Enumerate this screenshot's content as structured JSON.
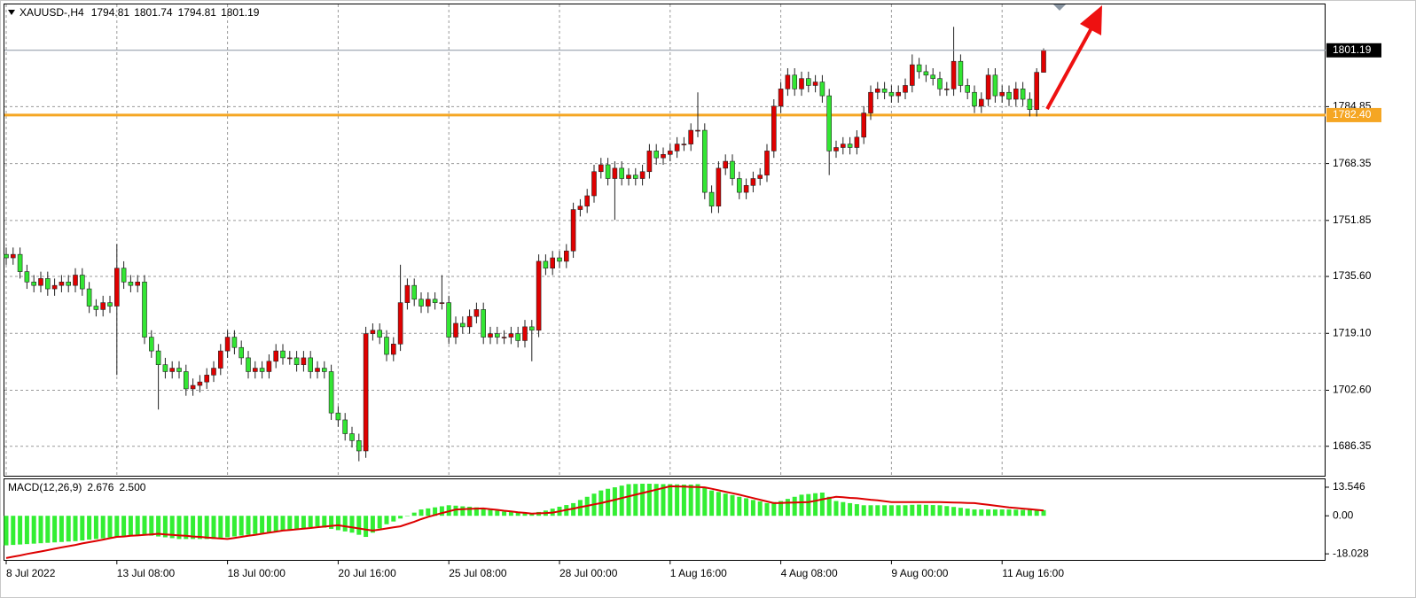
{
  "chart_data": [
    {
      "type": "candlestick",
      "title": "XAUUSD-,H4",
      "categories": [
        "8 Jul 2022",
        null,
        null,
        null,
        null,
        null,
        null,
        null,
        null,
        null,
        null,
        null,
        null,
        null,
        null,
        null,
        "13 Jul 08:00",
        null,
        null,
        null,
        null,
        null,
        null,
        null,
        null,
        null,
        null,
        null,
        null,
        null,
        null,
        null,
        "18 Jul 00:00",
        null,
        null,
        null,
        null,
        null,
        null,
        null,
        null,
        null,
        null,
        null,
        null,
        null,
        null,
        null,
        "20 Jul 16:00",
        null,
        null,
        null,
        null,
        null,
        null,
        null,
        null,
        null,
        null,
        null,
        null,
        null,
        null,
        null,
        "25 Jul 08:00",
        null,
        null,
        null,
        null,
        null,
        null,
        null,
        null,
        null,
        null,
        null,
        null,
        null,
        null,
        null,
        "28 Jul 00:00",
        null,
        null,
        null,
        null,
        null,
        null,
        null,
        null,
        null,
        null,
        null,
        null,
        null,
        null,
        null,
        "1 Aug 16:00",
        null,
        null,
        null,
        null,
        null,
        null,
        null,
        null,
        null,
        null,
        null,
        null,
        null,
        null,
        null,
        "4 Aug 08:00",
        null,
        null,
        null,
        null,
        null,
        null,
        null,
        null,
        null,
        null,
        null,
        null,
        null,
        null,
        null,
        "9 Aug 00:00",
        null,
        null,
        null,
        null,
        null,
        null,
        null,
        null,
        null,
        null,
        null,
        null,
        null,
        null,
        null,
        "11 Aug 16:00",
        null,
        null,
        null,
        null,
        null,
        null
      ],
      "open": [
        1742,
        1741,
        1742,
        1737,
        1734,
        1733,
        1735,
        1732,
        1733,
        1734,
        1733,
        1736,
        1732,
        1727,
        1726,
        1728,
        1727,
        1738,
        1734,
        1733,
        1734,
        1718,
        1714,
        1710,
        1708,
        1709,
        1708,
        1703,
        1704,
        1705,
        1707,
        1709,
        1714,
        1718,
        1715,
        1712,
        1708,
        1709,
        1708,
        1711,
        1714,
        1712,
        1712,
        1710,
        1712,
        1708,
        1709,
        1708,
        1696,
        1694,
        1690,
        1688,
        1685,
        1719,
        1720,
        1718,
        1713,
        1716,
        1728,
        1733,
        1729,
        1727,
        1729,
        1728,
        1728,
        1718,
        1722,
        1721,
        1724,
        1726,
        1718,
        1719,
        1718,
        1718,
        1719,
        1717,
        1721,
        1720,
        1740,
        1738,
        1741,
        1740,
        1743,
        1755,
        1756,
        1759,
        1766,
        1768,
        1764,
        1767,
        1764,
        1765,
        1764,
        1766,
        1772,
        1770,
        1771,
        1772,
        1774,
        1774,
        1778,
        1778,
        1760,
        1756,
        1767,
        1769,
        1764,
        1760,
        1762,
        1764,
        1765,
        1772,
        1785,
        1790,
        1794,
        1790,
        1793,
        1791,
        1792,
        1788,
        1772,
        1773,
        1774,
        1773,
        1776,
        1783,
        1789,
        1790,
        1789,
        1788,
        1789,
        1791,
        1797,
        1795,
        1794,
        1793,
        1790,
        1790,
        1798,
        1791,
        1789,
        1785,
        1787,
        1794,
        1788,
        1789,
        1787,
        1790,
        1787,
        1784,
        1794.81
      ],
      "high": [
        1744,
        1744,
        1744,
        1739,
        1736,
        1737,
        1737,
        1735,
        1736,
        1736,
        1738,
        1738,
        1734,
        1729,
        1730,
        1730,
        1745,
        1740,
        1736,
        1736,
        1736,
        1720,
        1716,
        1712,
        1711,
        1711,
        1710,
        1706,
        1707,
        1709,
        1711,
        1716,
        1720,
        1720,
        1717,
        1714,
        1711,
        1711,
        1713,
        1716,
        1716,
        1714,
        1714,
        1714,
        1714,
        1711,
        1711,
        1710,
        1698,
        1696,
        1692,
        1690,
        1721,
        1722,
        1722,
        1720,
        1718,
        1739,
        1735,
        1735,
        1731,
        1731,
        1731,
        1736,
        1730,
        1724,
        1724,
        1726,
        1728,
        1728,
        1721,
        1721,
        1720,
        1721,
        1721,
        1723,
        1723,
        1742,
        1742,
        1743,
        1743,
        1745,
        1757,
        1758,
        1761,
        1768,
        1770,
        1770,
        1769,
        1769,
        1767,
        1767,
        1768,
        1774,
        1774,
        1773,
        1774,
        1776,
        1776,
        1780,
        1789,
        1780,
        1762,
        1769,
        1771,
        1771,
        1766,
        1764,
        1766,
        1767,
        1774,
        1787,
        1792,
        1796,
        1796,
        1795,
        1795,
        1794,
        1794,
        1790,
        1775,
        1776,
        1776,
        1778,
        1785,
        1791,
        1792,
        1792,
        1791,
        1791,
        1793,
        1800,
        1799,
        1797,
        1796,
        1795,
        1792,
        1808,
        1800,
        1793,
        1791,
        1789,
        1796,
        1796,
        1791,
        1791,
        1792,
        1792,
        1789,
        1796,
        1801.74
      ],
      "low": [
        1739,
        1739,
        1735,
        1732,
        1731,
        1731,
        1730,
        1730,
        1731,
        1731,
        1731,
        1730,
        1725,
        1724,
        1724,
        1725,
        1707,
        1732,
        1731,
        1731,
        1716,
        1712,
        1697,
        1706,
        1706,
        1706,
        1701,
        1701,
        1702,
        1703,
        1705,
        1707,
        1712,
        1713,
        1710,
        1706,
        1706,
        1706,
        1706,
        1709,
        1710,
        1710,
        1708,
        1708,
        1706,
        1706,
        1706,
        1694,
        1692,
        1688,
        1686,
        1682,
        1683,
        1717,
        1716,
        1711,
        1711,
        1714,
        1726,
        1727,
        1725,
        1725,
        1726,
        1726,
        1716,
        1716,
        1719,
        1719,
        1722,
        1716,
        1716,
        1716,
        1716,
        1716,
        1715,
        1715,
        1711,
        1718,
        1736,
        1736,
        1738,
        1738,
        1741,
        1753,
        1754,
        1757,
        1764,
        1762,
        1752,
        1762,
        1762,
        1762,
        1762,
        1764,
        1768,
        1768,
        1769,
        1770,
        1772,
        1772,
        1776,
        1758,
        1754,
        1754,
        1765,
        1762,
        1758,
        1758,
        1760,
        1762,
        1763,
        1770,
        1783,
        1788,
        1788,
        1788,
        1789,
        1789,
        1786,
        1765,
        1770,
        1771,
        1771,
        1771,
        1774,
        1781,
        1787,
        1787,
        1786,
        1786,
        1787,
        1789,
        1793,
        1792,
        1791,
        1788,
        1788,
        1788,
        1789,
        1787,
        1783,
        1783,
        1785,
        1786,
        1786,
        1785,
        1785,
        1785,
        1782,
        1782,
        1794.81
      ],
      "close": [
        1741,
        1742,
        1737,
        1734,
        1733,
        1735,
        1732,
        1733,
        1734,
        1733,
        1736,
        1732,
        1727,
        1726,
        1728,
        1727,
        1738,
        1734,
        1733,
        1734,
        1718,
        1714,
        1710,
        1708,
        1709,
        1708,
        1703,
        1704,
        1705,
        1707,
        1709,
        1714,
        1718,
        1715,
        1712,
        1708,
        1709,
        1708,
        1711,
        1714,
        1712,
        1712,
        1710,
        1712,
        1708,
        1709,
        1708,
        1696,
        1694,
        1690,
        1688,
        1685,
        1719,
        1720,
        1718,
        1713,
        1716,
        1728,
        1733,
        1729,
        1727,
        1729,
        1728,
        1728,
        1718,
        1722,
        1721,
        1724,
        1726,
        1718,
        1719,
        1718,
        1718,
        1719,
        1717,
        1721,
        1720,
        1740,
        1738,
        1741,
        1740,
        1743,
        1755,
        1756,
        1759,
        1766,
        1768,
        1764,
        1767,
        1764,
        1765,
        1764,
        1766,
        1772,
        1770,
        1771,
        1772,
        1774,
        1774,
        1778,
        1778,
        1760,
        1756,
        1767,
        1769,
        1764,
        1760,
        1762,
        1764,
        1765,
        1772,
        1785,
        1790,
        1794,
        1790,
        1793,
        1791,
        1792,
        1788,
        1772,
        1773,
        1774,
        1773,
        1776,
        1783,
        1789,
        1790,
        1789,
        1788,
        1789,
        1791,
        1797,
        1795,
        1794,
        1793,
        1790,
        1790,
        1798,
        1791,
        1789,
        1785,
        1787,
        1794,
        1788,
        1789,
        1787,
        1790,
        1787,
        1784,
        1794.81,
        1801.19
      ],
      "up_color": "#e00000",
      "down_color": "#33e633",
      "ylim": [
        1677.8,
        1814.5
      ],
      "yticks": [
        1784.85,
        1768.35,
        1751.85,
        {
          "value": 1735.6,
          "label": "1735.60"
        },
        {
          "value": 1719.1,
          "label": "1719.10"
        },
        {
          "value": 1702.6,
          "label": "1702.60"
        },
        1686.35
      ],
      "grid": true,
      "hline": {
        "value": 1782.4,
        "label": "1782.40",
        "color": "#f5a623"
      }
    },
    {
      "type": "macd",
      "title": "MACD(12,26,9)",
      "histogram": {
        "color": "#33ee33",
        "values": [
          -14,
          -13.8,
          -13.6,
          -13.4,
          -13.2,
          -13,
          -12.8,
          -12.6,
          -12.4,
          -12.2,
          -12,
          -11.7,
          -11.3,
          -11,
          -10.7,
          -10.3,
          -10,
          -9.8,
          -9.5,
          -9.3,
          -9,
          -9.4,
          -9.8,
          -10.2,
          -10.6,
          -11,
          -11,
          -11,
          -11,
          -11,
          -11,
          -10.6,
          -10.2,
          -9.8,
          -9.4,
          -9,
          -8.6,
          -8.2,
          -7.8,
          -7.4,
          -7,
          -6.6,
          -6.2,
          -5.8,
          -5.4,
          -5,
          -5.6,
          -6.2,
          -6.8,
          -7.4,
          -8,
          -9,
          -10,
          -8,
          -6,
          -4,
          -2.7,
          -1.3,
          0,
          1.5,
          3,
          3.5,
          4,
          4.5,
          5,
          4.8,
          4.5,
          4.3,
          4,
          3.5,
          3,
          2.5,
          2,
          1.8,
          1.5,
          1.3,
          1,
          1.8,
          2.5,
          3.4,
          4.3,
          5.1,
          6,
          7.5,
          9,
          10.5,
          12,
          12.8,
          13.5,
          14.3,
          15,
          15.1,
          15.2,
          15.2,
          15.1,
          15,
          15,
          14.9,
          14.8,
          14.8,
          15,
          13.5,
          12,
          11.3,
          10.5,
          9.8,
          9,
          8.3,
          7.5,
          6.8,
          6,
          6.5,
          7,
          8,
          9,
          10,
          10.3,
          10.7,
          11,
          9,
          7,
          6.5,
          6,
          5.5,
          5,
          5,
          5,
          5,
          5,
          5,
          5,
          5.2,
          5.3,
          5.2,
          5.1,
          5,
          4.6,
          4.2,
          3.8,
          3.4,
          3,
          3,
          3,
          3,
          3,
          3,
          2.9,
          2.8,
          2.8,
          2.7,
          2.676
        ]
      },
      "signal": {
        "color": "#dd0000",
        "values": [
          -20,
          -19.4,
          -18.8,
          -18.1,
          -17.5,
          -16.9,
          -16.3,
          -15.6,
          -15,
          -14.4,
          -13.8,
          -13.1,
          -12.5,
          -11.9,
          -11.3,
          -10.6,
          -10,
          -9.8,
          -9.5,
          -9.3,
          -9,
          -8.8,
          -8.5,
          -8.8,
          -9,
          -9.3,
          -9.5,
          -9.8,
          -10,
          -10.3,
          -10.5,
          -10.8,
          -11,
          -10.5,
          -10,
          -9.5,
          -9,
          -8.5,
          -8,
          -7.5,
          -7,
          -6.7,
          -6.4,
          -6.1,
          -5.8,
          -5.4,
          -5.1,
          -4.8,
          -4.5,
          -5,
          -5.5,
          -6,
          -6.5,
          -7,
          -6.5,
          -6,
          -5.5,
          -5,
          -3.9,
          -2.8,
          -1.6,
          -0.5,
          0.4,
          1.3,
          2.1,
          3,
          3.1,
          3.3,
          3.4,
          3.5,
          3.1,
          2.8,
          2.4,
          2.1,
          1.7,
          1.4,
          1,
          1.2,
          1.3,
          1.5,
          2.1,
          2.8,
          3.4,
          4.1,
          4.7,
          5.4,
          6,
          6.8,
          7.6,
          8.4,
          9.2,
          10,
          10.8,
          11.6,
          12.4,
          13.2,
          14,
          13.9,
          13.8,
          13.7,
          13.6,
          13.5,
          12.8,
          12.1,
          11.4,
          10.7,
          10,
          9.2,
          8.4,
          7.6,
          6.8,
          6,
          6.1,
          6.2,
          6.3,
          6.4,
          6.5,
          7.1,
          7.8,
          8.4,
          9,
          8.8,
          8.5,
          8.3,
          8,
          7.6,
          7.3,
          6.9,
          6.5,
          6.5,
          6.5,
          6.5,
          6.5,
          6.5,
          6.5,
          6.5,
          6.4,
          6.3,
          6.2,
          6.1,
          6,
          5.6,
          5.2,
          4.8,
          4.4,
          4,
          3.7,
          3.4,
          3.1,
          2.8,
          2.5
        ],
        "last_value_label": "2.500"
      },
      "ylim": [
        -20.9,
        17.3
      ],
      "yticks": [
        13.546,
        {
          "value": 0,
          "label": "0.00"
        },
        -18.028
      ]
    }
  ]
}
